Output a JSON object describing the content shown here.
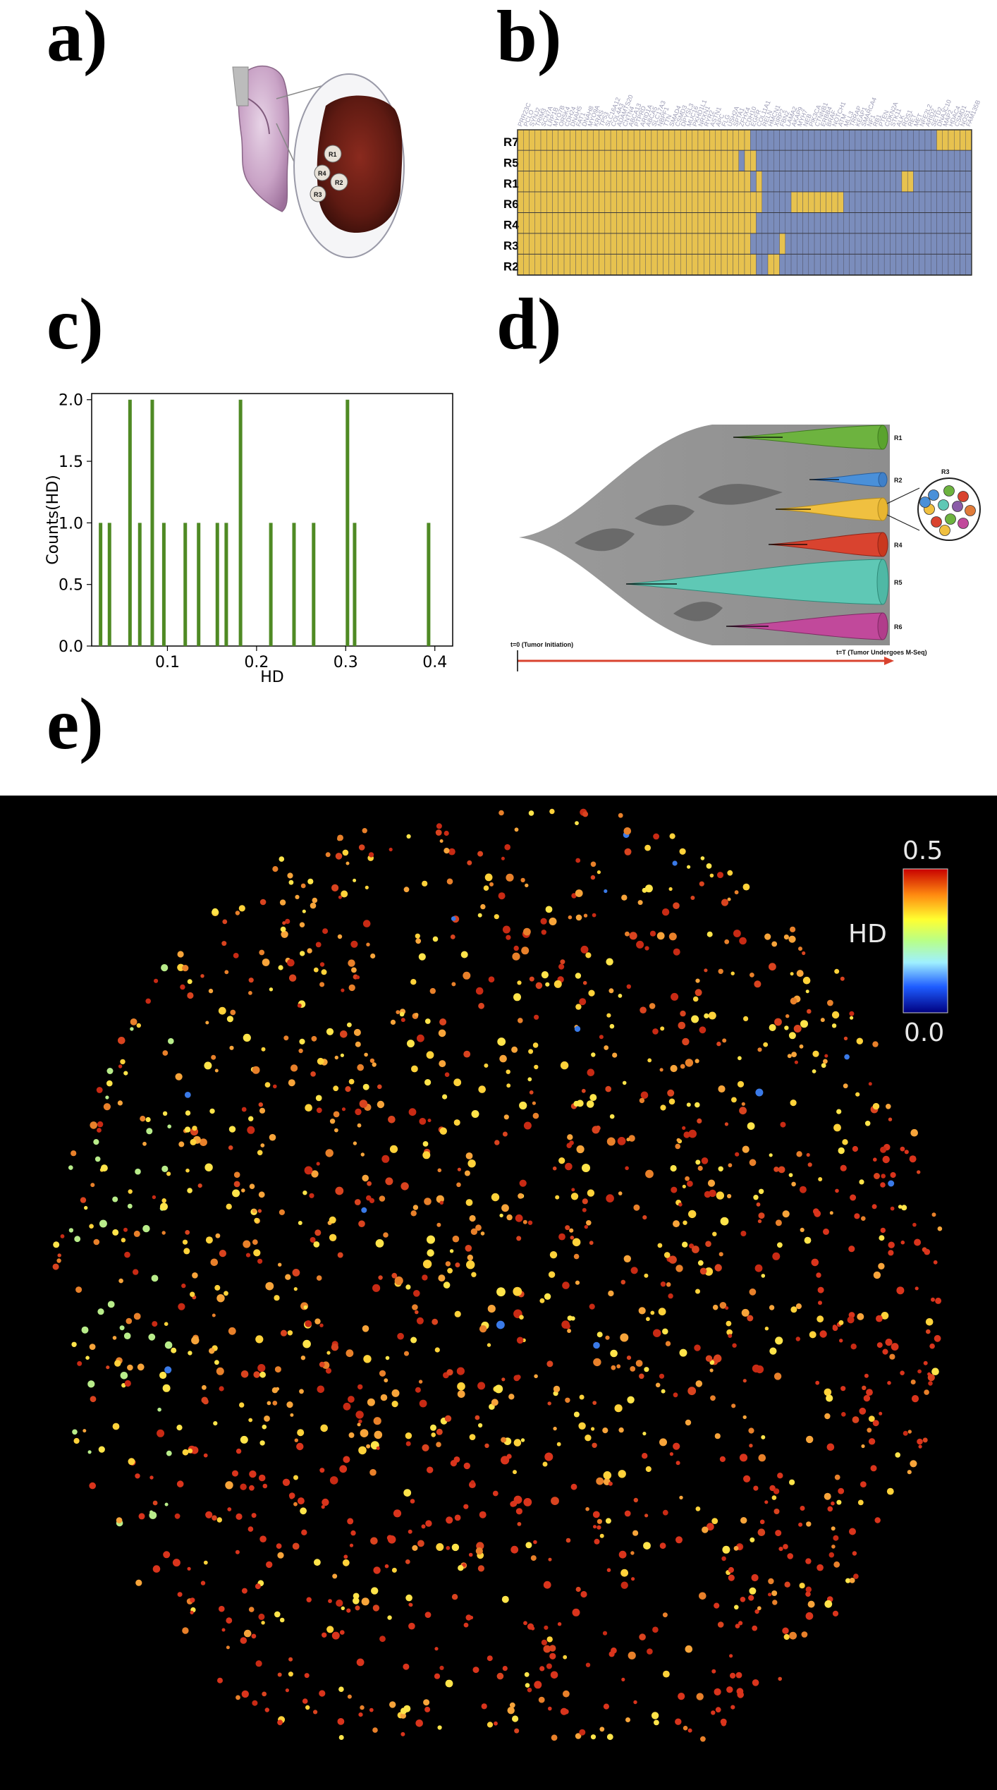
{
  "panels": {
    "a": "a)",
    "b": "b)",
    "c": "c)",
    "d": "d)",
    "e": "e)"
  },
  "panel_a": {
    "region_labels": [
      "R1",
      "R2",
      "R4",
      "R3"
    ]
  },
  "panel_b": {
    "rows": [
      "R7",
      "R5",
      "R1",
      "R6",
      "R4",
      "R3",
      "R2"
    ],
    "genes": [
      "PRR23C",
      "PCLO",
      "SYNJ2",
      "TRIM3",
      "SCN7A",
      "LRP1B",
      "MYO7B",
      "OR5K4",
      "CDH24",
      "DNAH5",
      "FAT1",
      "DNAH8",
      "MYO9A",
      "KRAS",
      "TP53",
      "SLC16A12",
      "COL4A3",
      "ADAMTS20",
      "CNTN4",
      "ABCA13",
      "PTPRD",
      "ARID1A",
      "ABCA5",
      "SLC17A3",
      "NBPF1",
      "TTN",
      "SMAD4",
      "CSMD3",
      "DPYSL3",
      "MUC16",
      "PKHD1L1",
      "NRXN1",
      "RYR2",
      "ASTN1",
      "APC",
      "FLG",
      "USH2A",
      "SPTA1",
      "ZFHX4",
      "CDH10",
      "EGFR",
      "COL11A1",
      "RELN",
      "HMCN1",
      "XIRP2",
      "FBN2",
      "LAMA2",
      "AKAP9",
      "MYH7",
      "NEB",
      "PIK3CA",
      "CTNNB1",
      "ERBB4",
      "BRAF",
      "NOTCH1",
      "ATM",
      "MLL3",
      "TRRAP",
      "KEAP1",
      "SMARCA4",
      "NF1",
      "RB1",
      "PTEN",
      "CDKN2A",
      "STK11",
      "ALK",
      "ROS1",
      "RET",
      "MET",
      "NFE2L2",
      "ARID2",
      "SETD2",
      "DNAJC10",
      "MAP2",
      "HDAC4",
      "CSMD1",
      "NOS1",
      "FAM135B"
    ],
    "highlight_genes": [
      "MYO7B",
      "OR5K4",
      "PTPRD",
      "NOTCH1",
      "NFE2L2",
      "ARID2",
      "SETD2"
    ],
    "colors": {
      "yellow": "#e7c24f",
      "blue": "#7b8dbc",
      "highlight": "#8a5ca8"
    }
  },
  "panel_d": {
    "clone_labels": [
      "R1",
      "R2",
      "R3",
      "R4",
      "R5",
      "R6"
    ],
    "start_label": "t=0 (Tumor Initiation)",
    "end_label": "t=T (Tumor Undergoes M-Seq)",
    "clone_colors": [
      "#6db33f",
      "#4a90d9",
      "#f0c040",
      "#d9432f",
      "#5fc8b5",
      "#c1499b"
    ],
    "r3_cell_colors": [
      "#4a90d9",
      "#6db33f",
      "#d9432f",
      "#f0c040",
      "#5fc8b5",
      "#8a5ca8",
      "#e07b39",
      "#d9432f",
      "#6db33f",
      "#c1499b",
      "#f0c040",
      "#4a90d9"
    ]
  },
  "panel_e": {
    "colorbar_label": "HD",
    "colorbar_max": "0.5",
    "colorbar_min": "0.0",
    "background": "#000000"
  },
  "chart_data": [
    {
      "type": "bar",
      "panel": "c",
      "xlabel": "HD",
      "ylabel": "Counts(HD)",
      "xlim": [
        0.015,
        0.42
      ],
      "ylim": [
        0,
        2.05
      ],
      "xticks": [
        "0.1",
        "0.2",
        "0.3",
        "0.4"
      ],
      "yticks": [
        "0.0",
        "0.5",
        "1.0",
        "1.5",
        "2.0"
      ],
      "x": [
        0.025,
        0.035,
        0.058,
        0.069,
        0.083,
        0.096,
        0.12,
        0.135,
        0.156,
        0.166,
        0.182,
        0.216,
        0.242,
        0.264,
        0.302,
        0.31,
        0.393
      ],
      "values": [
        1,
        1,
        2,
        1,
        2,
        1,
        1,
        1,
        1,
        1,
        2,
        1,
        1,
        1,
        2,
        1,
        1
      ],
      "bar_color": "#4f8a24",
      "grid": false
    }
  ]
}
